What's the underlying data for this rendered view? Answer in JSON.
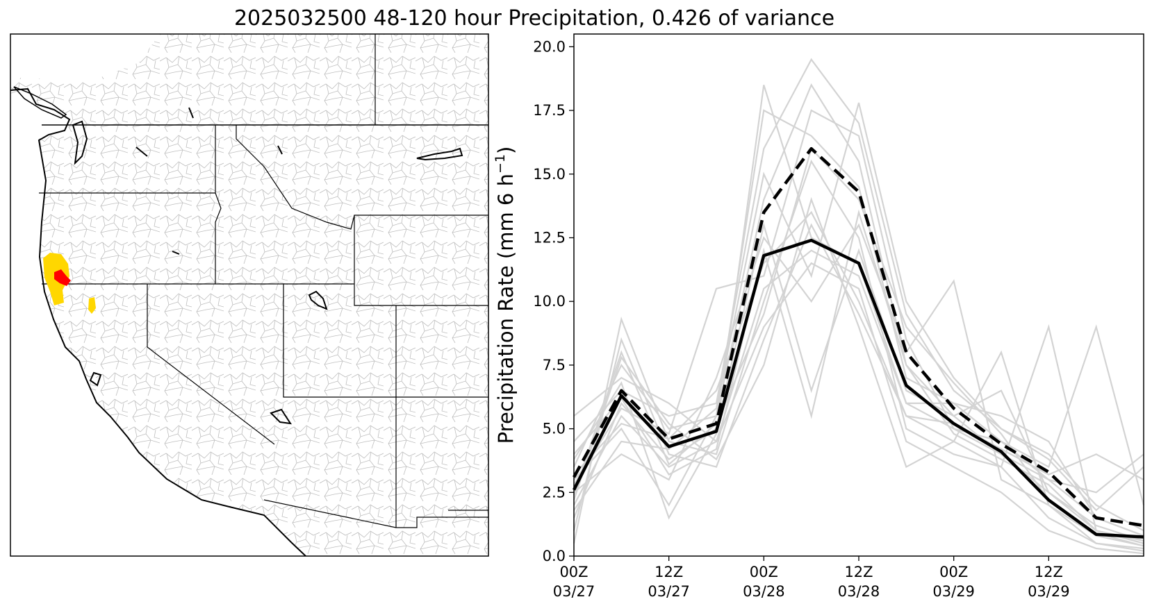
{
  "title": "2025032500 48-120 hour Precipitation, 0.426 of variance",
  "colors": {
    "member": "#d3d3d3",
    "mean": "#000000",
    "highlight_red": "#ff0000",
    "highlight_yellow": "#ffd700",
    "border": "#000000",
    "basin": "#bdbdbd"
  },
  "map": {
    "description_icon": "western-us-basin-map"
  },
  "chart_data": {
    "type": "line",
    "ylabel": "Precipitation Rate (mm 6 h",
    "ylabel_sup": "−1",
    "ylabel_close": ")",
    "xlim": [
      0,
      3
    ],
    "ylim": [
      0,
      20.5
    ],
    "yticks": [
      "0.0",
      "2.5",
      "5.0",
      "7.5",
      "10.0",
      "12.5",
      "15.0",
      "17.5",
      "20.0"
    ],
    "ytick_values": [
      0,
      2.5,
      5,
      7.5,
      10,
      12.5,
      15,
      17.5,
      20
    ],
    "xticks": [
      {
        "value": 0.0,
        "line1": "00Z",
        "line2": "03/27"
      },
      {
        "value": 0.5,
        "line1": "12Z",
        "line2": "03/27"
      },
      {
        "value": 1.0,
        "line1": "00Z",
        "line2": "03/28"
      },
      {
        "value": 1.5,
        "line1": "12Z",
        "line2": "03/28"
      },
      {
        "value": 2.0,
        "line1": "00Z",
        "line2": "03/29"
      },
      {
        "value": 2.5,
        "line1": "12Z",
        "line2": "03/29"
      }
    ],
    "x": [
      0,
      0.25,
      0.5,
      0.75,
      1.0,
      1.25,
      1.5,
      1.75,
      2.0,
      2.25,
      2.5,
      2.75,
      3.0
    ],
    "series": [
      {
        "style": "solid",
        "values": [
          2.6,
          6.3,
          4.3,
          4.9,
          11.8,
          12.4,
          11.5,
          6.7,
          5.2,
          4.1,
          2.2,
          0.85,
          0.75
        ]
      },
      {
        "style": "dashed",
        "values": [
          3.1,
          6.5,
          4.6,
          5.2,
          13.5,
          16.0,
          14.3,
          8.0,
          5.8,
          4.4,
          3.3,
          1.5,
          1.2
        ]
      }
    ],
    "members": [
      [
        3.5,
        7.5,
        5.0,
        5.5,
        14.0,
        18.5,
        15.5,
        7.5,
        5.5,
        4.0,
        2.5,
        1.0,
        0.6
      ],
      [
        2.0,
        5.5,
        3.5,
        4.5,
        10.5,
        12.0,
        11.0,
        6.0,
        5.0,
        4.5,
        3.0,
        1.5,
        0.8
      ],
      [
        1.0,
        8.5,
        4.0,
        3.5,
        8.5,
        13.0,
        9.5,
        5.5,
        4.5,
        3.5,
        1.5,
        0.5,
        0.2
      ],
      [
        4.5,
        6.5,
        5.5,
        6.0,
        16.0,
        19.5,
        17.0,
        9.5,
        6.5,
        5.0,
        4.0,
        2.0,
        1.0
      ],
      [
        2.5,
        4.0,
        3.0,
        7.0,
        12.5,
        10.0,
        13.0,
        8.0,
        10.8,
        3.0,
        2.0,
        0.5,
        0.3
      ],
      [
        0.5,
        9.3,
        4.5,
        4.0,
        10.0,
        15.5,
        12.5,
        5.0,
        4.0,
        3.5,
        9.0,
        1.0,
        0.5
      ],
      [
        3.0,
        5.0,
        2.0,
        5.5,
        17.5,
        16.5,
        14.5,
        7.0,
        6.0,
        4.5,
        3.5,
        9.0,
        2.0
      ],
      [
        5.5,
        7.0,
        6.0,
        4.5,
        9.0,
        11.5,
        10.5,
        4.5,
        3.5,
        2.5,
        1.0,
        0.3,
        0.1
      ],
      [
        1.5,
        6.0,
        3.8,
        5.0,
        13.0,
        6.5,
        12.0,
        6.5,
        5.5,
        6.5,
        2.5,
        1.2,
        0.6
      ],
      [
        2.8,
        5.8,
        4.8,
        10.5,
        11.0,
        17.5,
        16.5,
        8.5,
        5.0,
        4.0,
        3.0,
        2.5,
        4.0
      ],
      [
        3.8,
        6.8,
        1.5,
        4.8,
        18.5,
        12.5,
        11.5,
        6.0,
        6.0,
        5.5,
        4.5,
        1.5,
        0.8
      ],
      [
        2.2,
        7.8,
        5.2,
        3.8,
        7.5,
        14.0,
        9.0,
        3.5,
        4.5,
        8.0,
        2.0,
        0.8,
        0.4
      ],
      [
        1.8,
        4.5,
        4.2,
        5.8,
        15.0,
        11.0,
        17.8,
        10.0,
        7.0,
        5.0,
        3.8,
        1.8,
        3.5
      ],
      [
        4.0,
        6.2,
        3.2,
        4.2,
        12.0,
        5.5,
        13.5,
        7.5,
        4.8,
        3.8,
        2.8,
        1.0,
        0.5
      ],
      [
        3.2,
        5.2,
        4.6,
        6.5,
        11.5,
        13.5,
        10.0,
        5.5,
        5.2,
        4.2,
        3.2,
        4.0,
        3.0
      ],
      [
        2.4,
        8.0,
        3.6,
        5.2,
        9.5,
        16.0,
        14.0,
        9.0,
        6.8,
        4.8,
        2.2,
        0.9,
        0.4
      ]
    ]
  }
}
